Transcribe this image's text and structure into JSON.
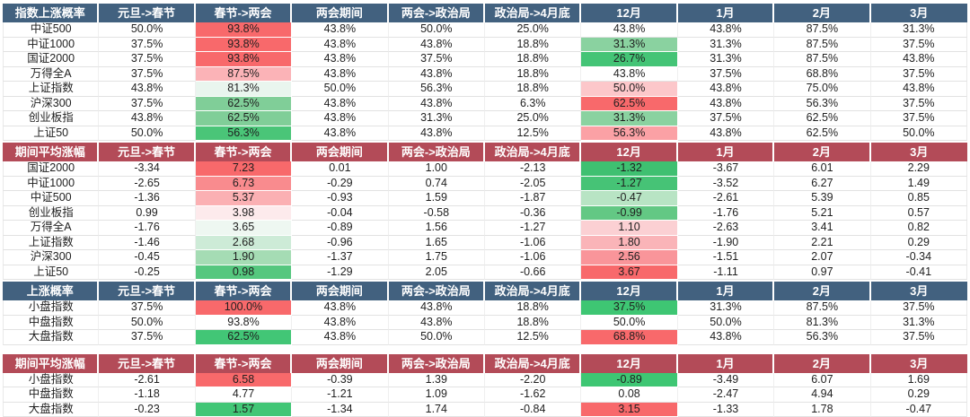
{
  "palette": {
    "header_blue": "#42617f",
    "header_red": "#b34b58",
    "scale_red_max": "#f8696b",
    "scale_green_max": "#3ec673",
    "grid_line": "#e2e2e2",
    "text": "#1f1f1f"
  },
  "columns_shared": [
    "元旦->春节",
    "春节->两会",
    "两会期间",
    "两会->政治局",
    "政治局->4月底",
    "12月",
    "1月",
    "2月",
    "3月"
  ],
  "chart_data": [
    {
      "type": "table",
      "title": "指数上涨概率",
      "header_style": "blue",
      "columns": [
        "指数上涨概率",
        "元旦->春节",
        "春节->两会",
        "两会期间",
        "两会->政治局",
        "政治局->4月底",
        "12月",
        "1月",
        "2月",
        "3月"
      ],
      "rows": [
        {
          "label": "中证500",
          "values": [
            "50.0%",
            "93.8%",
            "43.8%",
            "50.0%",
            "25.0%",
            "43.8%",
            "43.8%",
            "87.5%",
            "31.3%"
          ],
          "bg": [
            "",
            "#f8696b",
            "",
            "",
            "",
            "",
            "",
            "",
            ""
          ]
        },
        {
          "label": "中证1000",
          "values": [
            "37.5%",
            "93.8%",
            "43.8%",
            "43.8%",
            "18.8%",
            "31.3%",
            "31.3%",
            "87.5%",
            "37.5%"
          ],
          "bg": [
            "",
            "#f8696b",
            "",
            "",
            "",
            "#8ad2a0",
            "",
            "",
            ""
          ]
        },
        {
          "label": "国证2000",
          "values": [
            "37.5%",
            "93.8%",
            "43.8%",
            "37.5%",
            "18.8%",
            "26.7%",
            "31.3%",
            "87.5%",
            "43.8%"
          ],
          "bg": [
            "",
            "#f8696b",
            "",
            "",
            "",
            "#44c476",
            "",
            "",
            ""
          ]
        },
        {
          "label": "万得全A",
          "values": [
            "37.5%",
            "87.5%",
            "43.8%",
            "43.8%",
            "18.8%",
            "43.8%",
            "37.5%",
            "68.8%",
            "37.5%"
          ],
          "bg": [
            "",
            "#fbb3b7",
            "",
            "",
            "",
            "",
            "",
            "",
            ""
          ]
        },
        {
          "label": "上证指数",
          "values": [
            "43.8%",
            "81.3%",
            "50.0%",
            "56.3%",
            "18.8%",
            "50.0%",
            "43.8%",
            "75.0%",
            "43.8%"
          ],
          "bg": [
            "",
            "#e9f5ee",
            "",
            "",
            "",
            "#fcc7ca",
            "",
            "",
            ""
          ]
        },
        {
          "label": "沪深300",
          "values": [
            "37.5%",
            "62.5%",
            "43.8%",
            "43.8%",
            "6.3%",
            "62.5%",
            "43.8%",
            "56.3%",
            "37.5%"
          ],
          "bg": [
            "",
            "#80ce98",
            "",
            "",
            "",
            "#f8696b",
            "",
            "",
            ""
          ]
        },
        {
          "label": "创业板指",
          "values": [
            "43.8%",
            "62.5%",
            "43.8%",
            "31.3%",
            "25.0%",
            "31.3%",
            "37.5%",
            "62.5%",
            "37.5%"
          ],
          "bg": [
            "",
            "#80ce98",
            "",
            "",
            "",
            "#8ad2a0",
            "",
            "",
            ""
          ]
        },
        {
          "label": "上证50",
          "values": [
            "50.0%",
            "56.3%",
            "43.8%",
            "43.8%",
            "12.5%",
            "56.3%",
            "43.8%",
            "62.5%",
            "50.0%"
          ],
          "bg": [
            "",
            "#4ac578",
            "",
            "",
            "",
            "#fba1a5",
            "",
            "",
            ""
          ]
        }
      ]
    },
    {
      "type": "table",
      "title": "期间平均涨幅",
      "header_style": "red",
      "columns": [
        "期间平均涨幅",
        "元旦->春节",
        "春节->两会",
        "两会期间",
        "两会->政治局",
        "政治局->4月底",
        "12月",
        "1月",
        "2月",
        "3月"
      ],
      "rows": [
        {
          "label": "国证2000",
          "values": [
            "-3.34",
            "7.23",
            "0.01",
            "1.00",
            "-2.13",
            "-1.32",
            "-3.67",
            "6.01",
            "2.29"
          ],
          "bg": [
            "",
            "#f8696b",
            "",
            "",
            "",
            "#3fc071",
            "",
            "",
            ""
          ]
        },
        {
          "label": "中证1000",
          "values": [
            "-2.65",
            "6.73",
            "-0.29",
            "0.74",
            "-2.05",
            "-1.27",
            "-3.52",
            "6.27",
            "1.49"
          ],
          "bg": [
            "",
            "#f98b8e",
            "",
            "",
            "",
            "#46c376",
            "",
            "",
            ""
          ]
        },
        {
          "label": "中证500",
          "values": [
            "-1.36",
            "5.37",
            "-0.93",
            "1.59",
            "-1.87",
            "-0.47",
            "-2.61",
            "5.39",
            "0.85"
          ],
          "bg": [
            "",
            "#fbb0b3",
            "",
            "",
            "",
            "#b8e4c4",
            "",
            "",
            ""
          ]
        },
        {
          "label": "创业板指",
          "values": [
            "0.99",
            "3.98",
            "-0.04",
            "-0.58",
            "-0.36",
            "-0.99",
            "-1.76",
            "5.21",
            "0.57"
          ],
          "bg": [
            "",
            "#fdeaec",
            "",
            "",
            "",
            "#63c884",
            "",
            "",
            ""
          ]
        },
        {
          "label": "万得全A",
          "values": [
            "-1.76",
            "3.65",
            "-0.89",
            "1.56",
            "-1.27",
            "1.10",
            "-2.63",
            "3.41",
            "0.82"
          ],
          "bg": [
            "",
            "#eef7f1",
            "",
            "",
            "",
            "#fbd0d3",
            "",
            "",
            ""
          ]
        },
        {
          "label": "上证指数",
          "values": [
            "-1.46",
            "2.68",
            "-0.96",
            "1.65",
            "-1.06",
            "1.80",
            "-1.90",
            "2.21",
            "0.29"
          ],
          "bg": [
            "",
            "#cdebd7",
            "",
            "",
            "",
            "#fab4b8",
            "",
            "",
            ""
          ]
        },
        {
          "label": "沪深300",
          "values": [
            "-0.45",
            "1.90",
            "-1.37",
            "1.75",
            "-1.06",
            "2.56",
            "-1.51",
            "2.07",
            "-0.34"
          ],
          "bg": [
            "",
            "#a5dcb4",
            "",
            "",
            "",
            "#f9959a",
            "",
            "",
            ""
          ]
        },
        {
          "label": "上证50",
          "values": [
            "-0.25",
            "0.98",
            "-1.29",
            "2.05",
            "-0.66",
            "3.67",
            "-1.11",
            "0.97",
            "-0.41"
          ],
          "bg": [
            "",
            "#55c77e",
            "",
            "",
            "",
            "#f8696b",
            "",
            "",
            ""
          ]
        }
      ]
    },
    {
      "type": "table",
      "title": "上涨概率",
      "header_style": "blue",
      "columns": [
        "上涨概率",
        "元旦->春节",
        "春节->两会",
        "两会期间",
        "两会->政治局",
        "政治局->4月底",
        "12月",
        "1月",
        "2月",
        "3月"
      ],
      "rows": [
        {
          "label": "小盘指数",
          "values": [
            "37.5%",
            "100.0%",
            "43.8%",
            "43.8%",
            "18.8%",
            "37.5%",
            "31.3%",
            "87.5%",
            "37.5%"
          ],
          "bg": [
            "",
            "#f8696b",
            "",
            "",
            "",
            "#3ec673",
            "",
            "",
            ""
          ]
        },
        {
          "label": "中盘指数",
          "values": [
            "50.0%",
            "93.8%",
            "43.8%",
            "43.8%",
            "18.8%",
            "50.0%",
            "50.0%",
            "81.3%",
            "31.3%"
          ],
          "bg": [
            "",
            "",
            "",
            "",
            "",
            "",
            "",
            "",
            ""
          ]
        },
        {
          "label": "大盘指数",
          "values": [
            "37.5%",
            "62.5%",
            "43.8%",
            "50.0%",
            "12.5%",
            "68.8%",
            "43.8%",
            "56.3%",
            "37.5%"
          ],
          "bg": [
            "",
            "#42c676",
            "",
            "",
            "",
            "#f8696b",
            "",
            "",
            ""
          ]
        }
      ]
    },
    {
      "type": "table",
      "title": "期间平均涨幅",
      "header_style": "red",
      "columns": [
        "期间平均涨幅",
        "元旦->春节",
        "春节->两会",
        "两会期间",
        "两会->政治局",
        "政治局->4月底",
        "12月",
        "1月",
        "2月",
        "3月"
      ],
      "rows": [
        {
          "label": "小盘指数",
          "values": [
            "-2.61",
            "6.58",
            "-0.39",
            "1.39",
            "-2.20",
            "-0.89",
            "-3.49",
            "6.07",
            "1.69"
          ],
          "bg": [
            "",
            "#f8696b",
            "",
            "",
            "",
            "#3ec673",
            "",
            "",
            ""
          ]
        },
        {
          "label": "中盘指数",
          "values": [
            "-1.18",
            "4.77",
            "-1.21",
            "1.09",
            "-1.62",
            "0.08",
            "-2.47",
            "4.94",
            "0.29"
          ],
          "bg": [
            "",
            "",
            "",
            "",
            "",
            "",
            "",
            "",
            ""
          ]
        },
        {
          "label": "大盘指数",
          "values": [
            "-0.23",
            "1.57",
            "-1.34",
            "1.74",
            "-0.84",
            "3.15",
            "-1.33",
            "1.78",
            "-0.47"
          ],
          "bg": [
            "",
            "#42c676",
            "",
            "",
            "",
            "#f8696b",
            "",
            "",
            ""
          ]
        }
      ]
    }
  ]
}
